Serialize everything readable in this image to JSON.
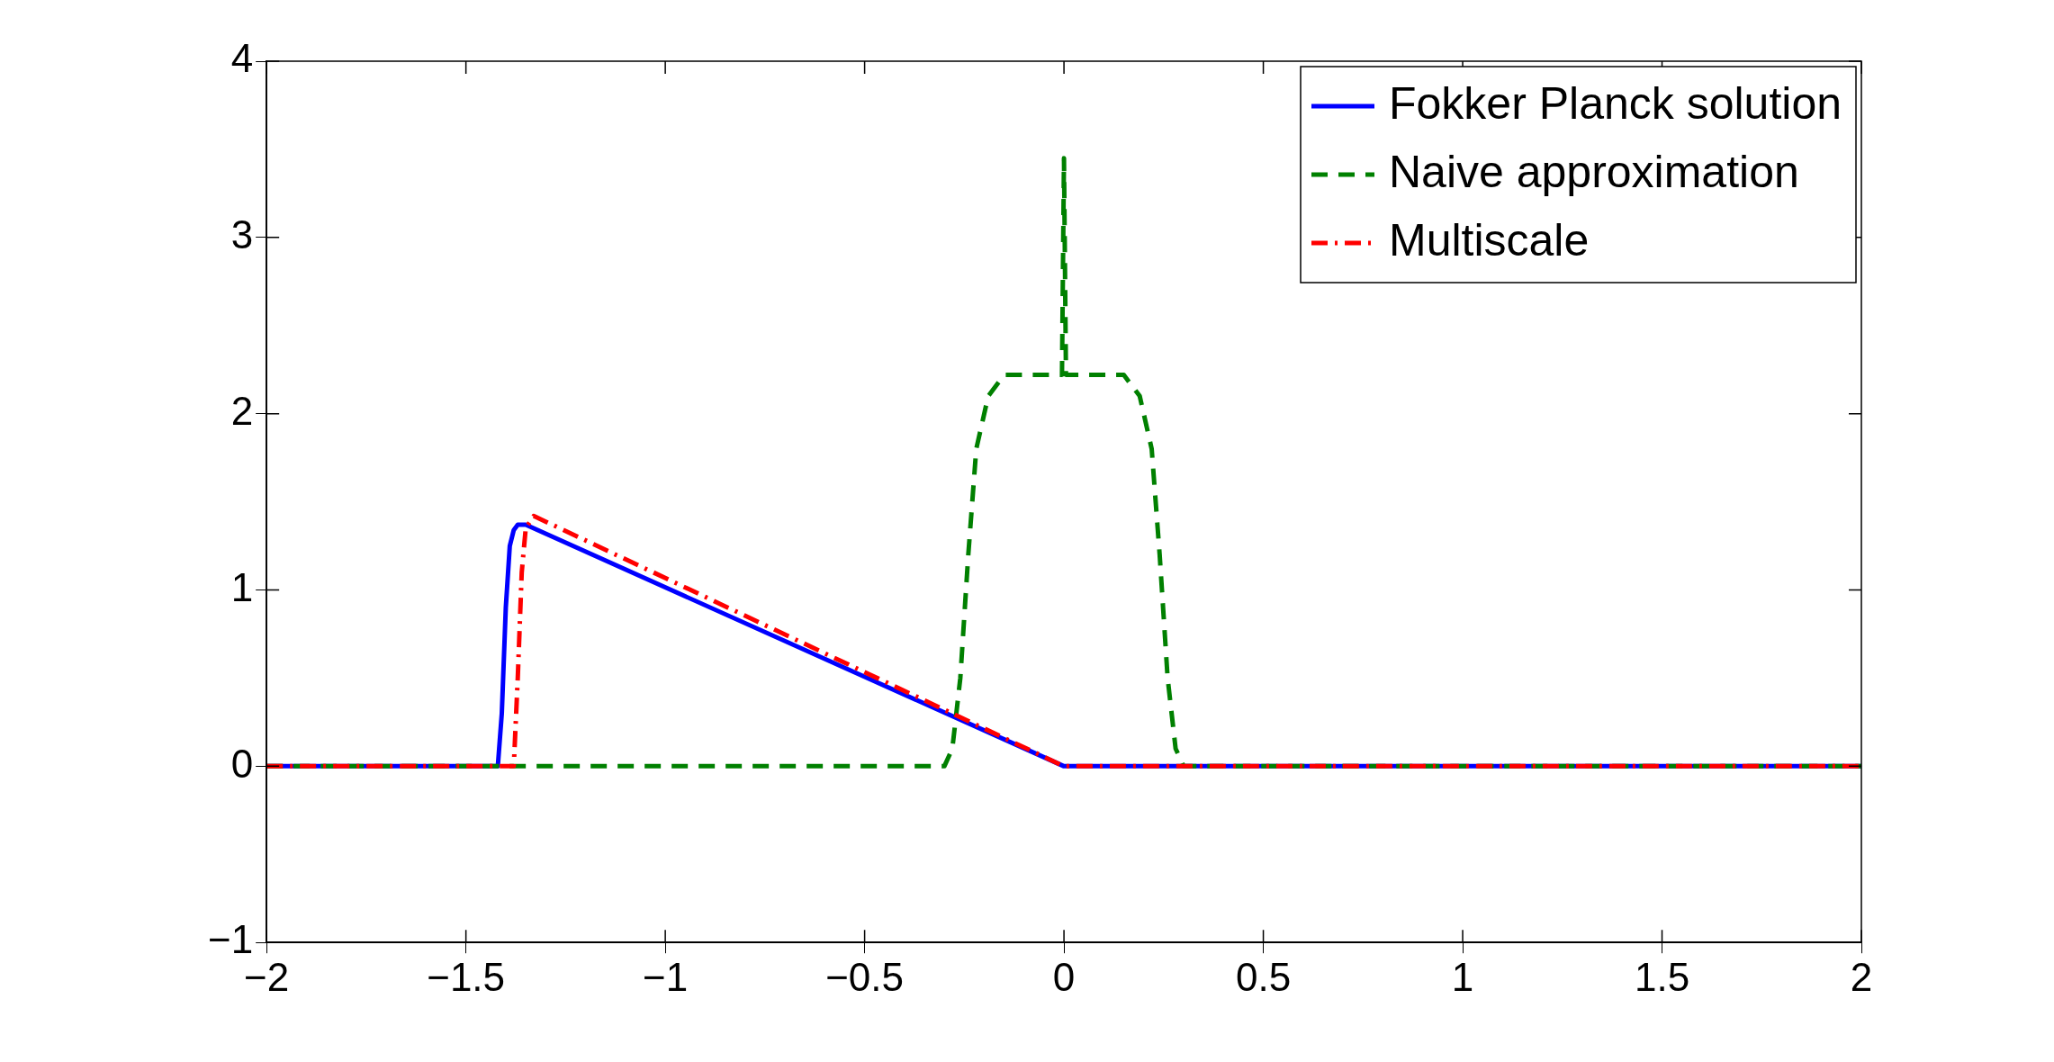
{
  "chart_data": {
    "type": "line",
    "xlim": [
      -2,
      2
    ],
    "xticks": [
      -2,
      -1.5,
      -1,
      -0.5,
      0,
      0.5,
      1,
      1.5,
      2
    ],
    "ylim": [
      -1,
      4
    ],
    "yticks": [
      -1,
      0,
      1,
      2,
      3,
      4
    ],
    "grid": false,
    "legend": "top right",
    "marker": "none",
    "series": [
      {
        "name": "Fokker Planck solution",
        "color": "#0000ff",
        "line_style": "solid",
        "x": [
          -2,
          -1.42,
          -1.41,
          -1.4,
          -1.39,
          -1.38,
          -1.37,
          -1.35,
          0,
          2
        ],
        "values": [
          0,
          0,
          0.3,
          0.9,
          1.25,
          1.34,
          1.37,
          1.37,
          0,
          0
        ]
      },
      {
        "name": "Naive approximation",
        "color": "#008000",
        "line_style": "dashed",
        "x": [
          -2,
          -0.3,
          -0.28,
          -0.26,
          -0.24,
          -0.22,
          -0.19,
          -0.15,
          -0.005,
          0,
          0.005,
          0.15,
          0.19,
          0.22,
          0.24,
          0.26,
          0.28,
          0.3,
          2
        ],
        "values": [
          0,
          0,
          0.1,
          0.5,
          1.2,
          1.8,
          2.1,
          2.22,
          2.22,
          3.45,
          2.22,
          2.22,
          2.1,
          1.8,
          1.2,
          0.5,
          0.1,
          0,
          0
        ]
      },
      {
        "name": "Multiscale",
        "color": "#ff0000",
        "line_style": "dashdot",
        "x": [
          -2,
          -1.38,
          -1.37,
          -1.36,
          -1.35,
          -1.33,
          0,
          2
        ],
        "values": [
          0,
          0,
          0.5,
          1.1,
          1.35,
          1.42,
          0,
          0
        ]
      }
    ]
  }
}
